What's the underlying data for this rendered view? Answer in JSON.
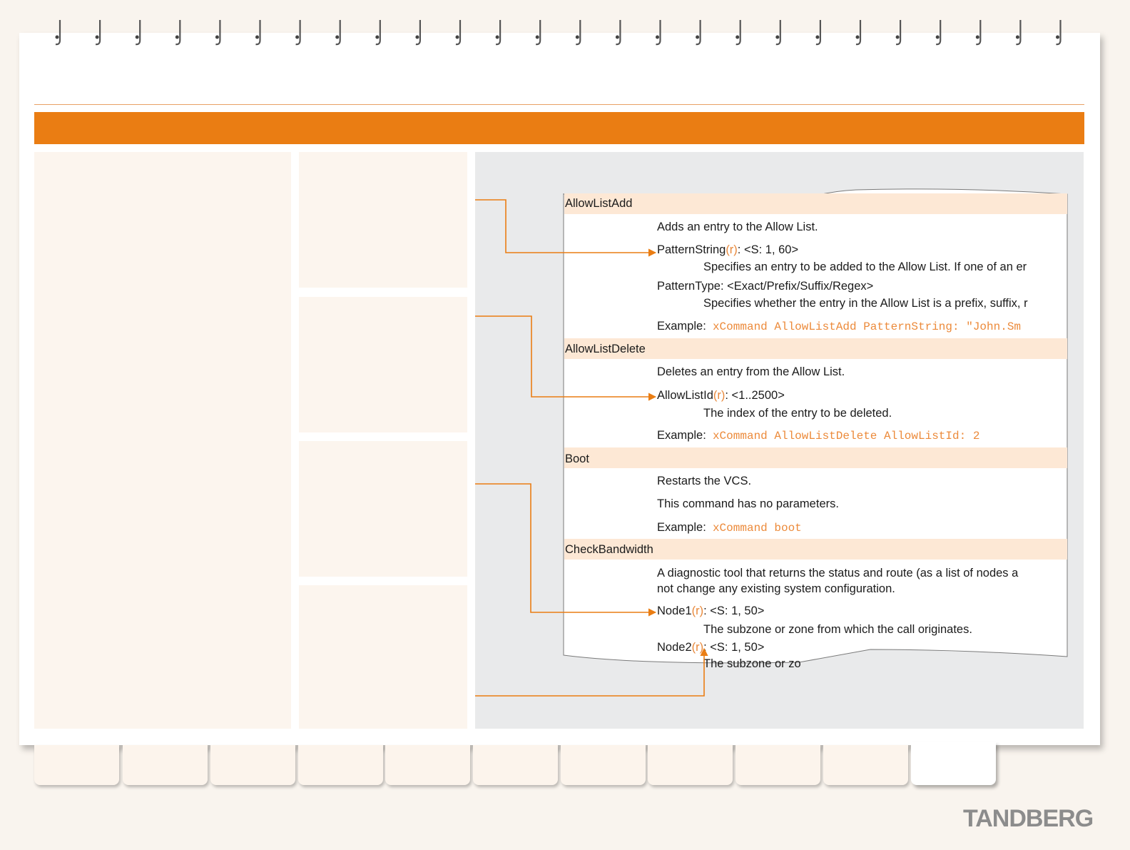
{
  "logo_text": "TANDBERG",
  "commands": [
    {
      "name": "AllowListAdd",
      "description": "Adds an entry to the Allow List.",
      "params": [
        {
          "name": "PatternString",
          "required_marker": "(r)",
          "type": ": <S: 1, 60>",
          "desc": "Specifies an entry to be added to the Allow List. If one of an er"
        },
        {
          "name": "PatternType",
          "required_marker": "",
          "type": ": <Exact/Prefix/Suffix/Regex>",
          "desc": "Specifies whether the entry in the Allow List is a prefix, suffix, r"
        }
      ],
      "example_label": "Example:",
      "example_code": "xCommand AllowListAdd PatternString: \"John.Sm"
    },
    {
      "name": "AllowListDelete",
      "description": "Deletes an entry from the Allow List.",
      "params": [
        {
          "name": "AllowListId",
          "required_marker": "(r)",
          "type": ": <1..2500>",
          "desc": "The index of the entry to be deleted."
        }
      ],
      "example_label": "Example:",
      "example_code": "xCommand AllowListDelete AllowListId: 2"
    },
    {
      "name": "Boot",
      "description": "Restarts the VCS.",
      "note": "This command has no parameters.",
      "example_label": "Example:",
      "example_code": "xCommand boot"
    },
    {
      "name": "CheckBandwidth",
      "description_line1": "A diagnostic tool that returns the status and route (as a list of nodes a",
      "description_line2": "not change any existing system configuration.",
      "params": [
        {
          "name": "Node1",
          "required_marker": "(r)",
          "type": ": <S: 1, 50>",
          "desc": "The subzone or zone from which the call originates."
        },
        {
          "name": "Node2",
          "required_marker": "(r)",
          "type": ": <S: 1, 50>",
          "desc": "The subzone or zo"
        }
      ]
    }
  ],
  "colors": {
    "accent": "#ea7d13",
    "section_bg": "#fde8d5",
    "panel_bg": "#e9eaeb",
    "code": "#ec8a3a"
  }
}
